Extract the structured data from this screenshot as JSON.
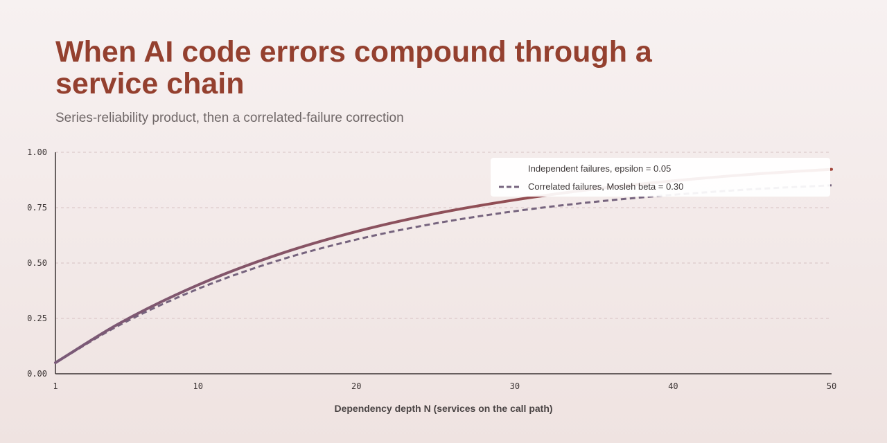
{
  "header": {
    "title": "When AI code errors compound through a service chain",
    "subtitle": "Series-reliability product, then a correlated-failure correction"
  },
  "colors": {
    "independent_start": "#7a5a78",
    "independent_end": "#a2453a",
    "correlated": "#76647e",
    "title": "#94402f"
  },
  "chart_data": {
    "type": "line",
    "xlabel": "Dependency depth N (services on the call path)",
    "ylabel": "",
    "xlim": [
      1,
      50
    ],
    "ylim": [
      0,
      1
    ],
    "xticks": [
      1,
      10,
      20,
      30,
      40,
      50
    ],
    "yticks": [
      "0.00",
      "0.25",
      "0.50",
      "0.75",
      "1.00"
    ],
    "grid": "horizontal dashed",
    "legend_position": "top-right",
    "series": [
      {
        "name": "Independent failures, epsilon = 0.05",
        "style": "solid",
        "x": [
          1,
          5,
          10,
          15,
          20,
          25,
          30,
          35,
          40,
          45,
          50
        ],
        "y": [
          0.05,
          0.226,
          0.401,
          0.537,
          0.642,
          0.723,
          0.785,
          0.834,
          0.871,
          0.901,
          0.923
        ]
      },
      {
        "name": "Correlated failures, Mosleh beta = 0.30",
        "style": "dashed",
        "x": [
          1,
          5,
          10,
          15,
          20,
          25,
          30,
          35,
          40,
          45,
          50
        ],
        "y": [
          0.05,
          0.218,
          0.383,
          0.51,
          0.606,
          0.679,
          0.734,
          0.776,
          0.808,
          0.833,
          0.851
        ]
      }
    ]
  }
}
